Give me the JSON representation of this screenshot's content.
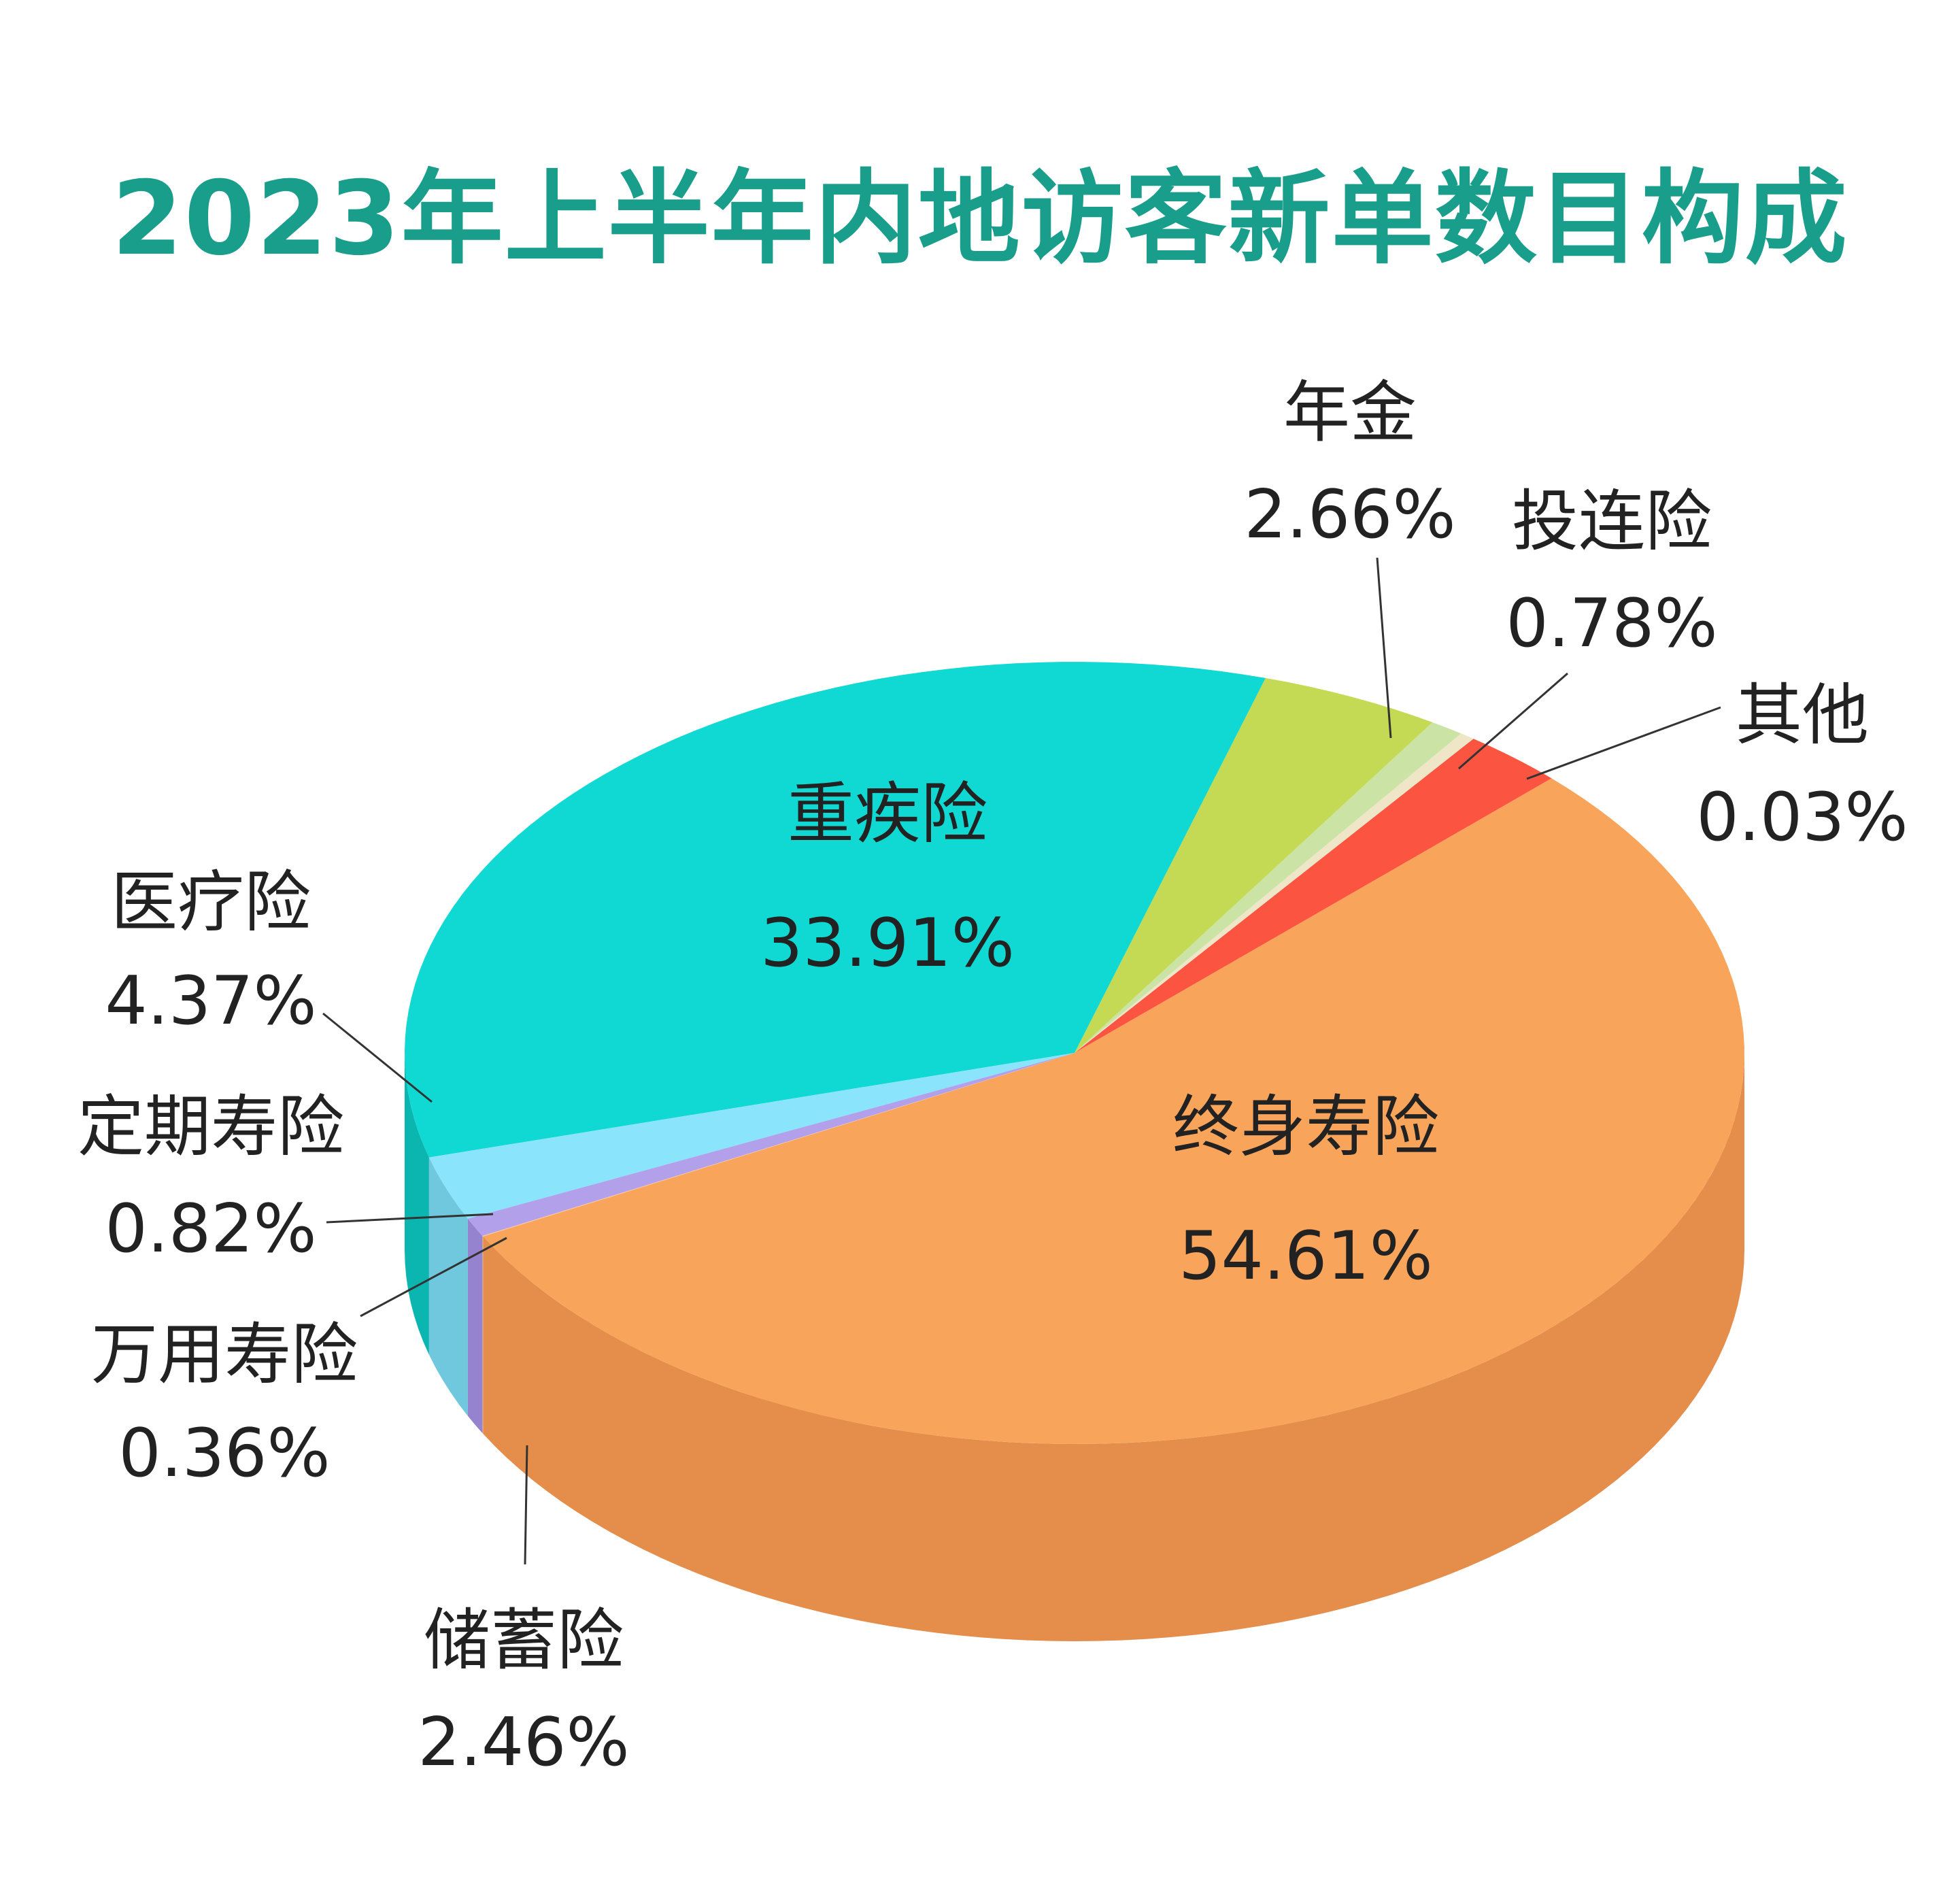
{
  "title": "2023年上半年内地访客新单数目构成",
  "colors": {
    "title": "#1a9e8c",
    "label_text": "#222222",
    "leader_line": "#333333"
  },
  "chart_data": {
    "type": "pie",
    "style": "3d",
    "title": "2023年上半年内地访客新单数目构成",
    "slices": [
      {
        "label": "终身寿险",
        "value_text": "54.61%",
        "value": 54.61,
        "color": "#f9a45b",
        "side_color": "#e58d4a"
      },
      {
        "label": "储蓄险",
        "value_text": "2.46%",
        "value": 2.46,
        "color": "#fb5440",
        "side_color": "#d42222"
      },
      {
        "label": "万用寿险",
        "value_text": "0.36%",
        "value": 0.36,
        "color": "#efe6c8",
        "side_color": "#e9dfb6"
      },
      {
        "label": "定期寿险",
        "value_text": "0.82%",
        "value": 0.82,
        "color": "#cbe4a6",
        "side_color": "#a8c688"
      },
      {
        "label": "医疗险",
        "value_text": "4.37%",
        "value": 4.37,
        "color": "#c4da54",
        "side_color": "#a9b83c"
      },
      {
        "label": "重疾险",
        "value_text": "33.91%",
        "value": 33.91,
        "color": "#10d8d2",
        "side_color": "#0bb5b0"
      },
      {
        "label": "年金",
        "value_text": "2.66%",
        "value": 2.66,
        "color": "#8ae4fb",
        "side_color": "#6fc8de"
      },
      {
        "label": "投连险",
        "value_text": "0.78%",
        "value": 0.78,
        "color": "#b3a0ea",
        "side_color": "#9683cf"
      },
      {
        "label": "其他",
        "value_text": "0.03%",
        "value": 0.03,
        "color": "#f9c39a",
        "side_color": "#e0a77e"
      }
    ]
  }
}
